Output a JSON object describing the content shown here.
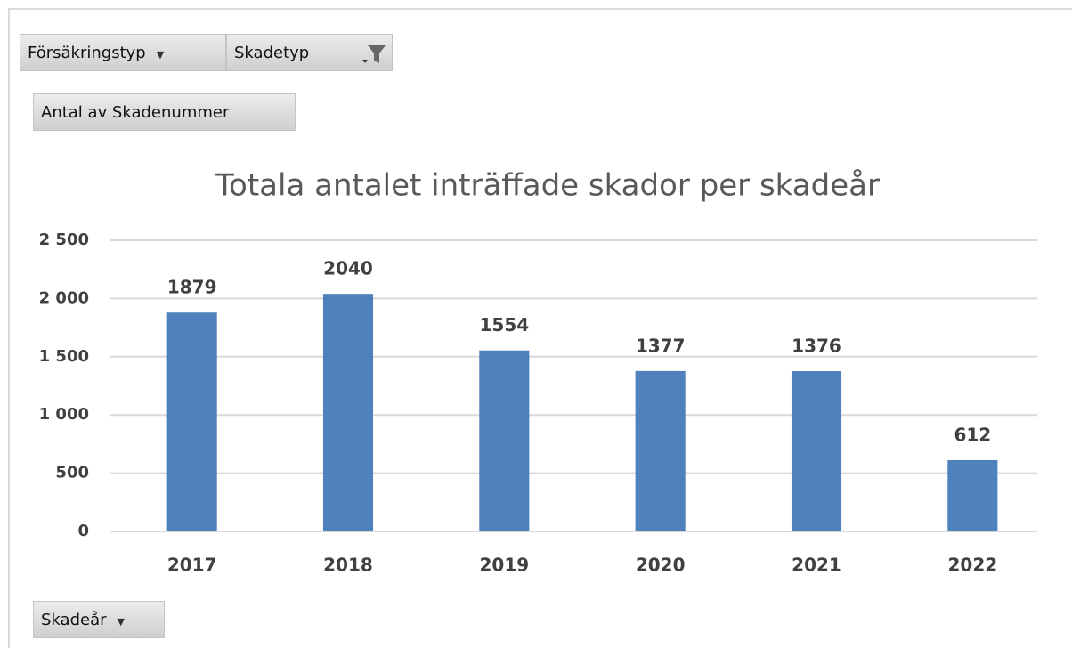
{
  "chart_data": {
    "type": "bar",
    "title": "Totala antalet inträffade skador per skadeår",
    "filter_buttons": [
      "Försäkringstyp",
      "Skadetyp"
    ],
    "value_button": "Antal av Skadenummer",
    "axis_button": "Skadeår",
    "categories": [
      "2017",
      "2018",
      "2019",
      "2020",
      "2021",
      "2022"
    ],
    "values": [
      1879,
      2040,
      1554,
      1377,
      1376,
      612
    ],
    "color": "#4f81bd",
    "ylim": [
      0,
      2500
    ],
    "yticks": [
      0,
      500,
      {
        "value": 1000,
        "label": "1 000"
      },
      {
        "value": 1500,
        "label": "1 500"
      },
      {
        "value": 2000,
        "label": "2 000"
      },
      {
        "value": 2500,
        "label": "2 500"
      }
    ],
    "grid": true
  }
}
